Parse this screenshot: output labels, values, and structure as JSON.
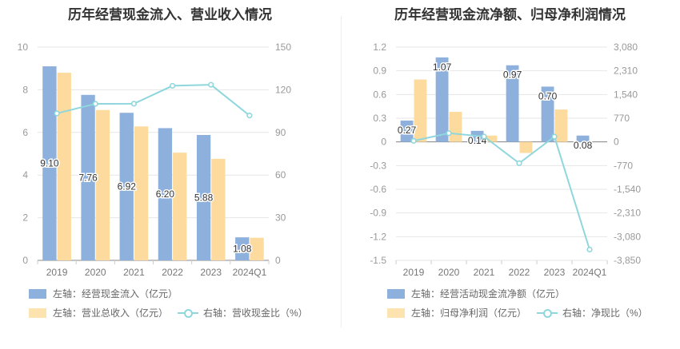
{
  "chart_data": [
    {
      "type": "bar",
      "title": "历年经营现金流入、营业收入情况",
      "categories": [
        "2019",
        "2020",
        "2021",
        "2022",
        "2023",
        "2024Q1"
      ],
      "series": [
        {
          "name": "左轴：经营现金流入（亿元）",
          "axis": "left",
          "type": "bar",
          "color": "#8eb0dd",
          "values": [
            9.1,
            7.76,
            6.92,
            6.2,
            5.88,
            1.08
          ],
          "labels": [
            "9.10",
            "7.76",
            "6.92",
            "6.20",
            "5.88",
            "1.08"
          ]
        },
        {
          "name": "左轴：营业总收入（亿元）",
          "axis": "left",
          "type": "bar",
          "color": "#fddb9e",
          "values": [
            8.8,
            7.05,
            6.28,
            5.05,
            4.76,
            1.06
          ]
        },
        {
          "name": "右轴：营收现金比（%）",
          "axis": "right",
          "type": "line",
          "color": "#8fd7dc",
          "values": [
            103.4,
            110.1,
            110.2,
            122.8,
            123.5,
            101.9
          ]
        }
      ],
      "left_axis": {
        "ylim": [
          0,
          10
        ],
        "ticks": [
          "0",
          "2",
          "4",
          "6",
          "8",
          "10"
        ]
      },
      "right_axis": {
        "ylim": [
          0,
          150
        ],
        "ticks": [
          "0",
          "30",
          "60",
          "90",
          "120",
          "150"
        ]
      }
    },
    {
      "type": "bar",
      "title": "历年经营现金流净额、归母净利润情况",
      "categories": [
        "2019",
        "2020",
        "2021",
        "2022",
        "2023",
        "2024Q1"
      ],
      "series": [
        {
          "name": "左轴：经营活动现金流净额（亿元）",
          "axis": "left",
          "type": "bar",
          "color": "#8eb0dd",
          "values": [
            0.27,
            1.07,
            0.14,
            0.97,
            0.7,
            0.08
          ],
          "labels": [
            "0.27",
            "1.07",
            "0.14",
            "0.97",
            "0.70",
            "0.08"
          ]
        },
        {
          "name": "左轴：归母净利润（亿元）",
          "axis": "left",
          "type": "bar",
          "color": "#fddb9e",
          "values": [
            0.79,
            0.38,
            0.08,
            -0.14,
            0.41,
            0.0
          ]
        },
        {
          "name": "右轴：净现比（%）",
          "axis": "right",
          "type": "line",
          "color": "#8fd7dc",
          "values": [
            34,
            282,
            175,
            -693,
            171,
            -3500
          ]
        }
      ],
      "left_axis": {
        "ylim": [
          -1.5,
          1.2
        ],
        "ticks": [
          "1.2",
          "0.9",
          "0.6",
          "0.3",
          "0",
          "-0.3",
          "-0.6",
          "-0.9",
          "-1.2",
          "-1.5"
        ]
      },
      "right_axis": {
        "ylim": [
          -3850,
          3080
        ],
        "ticks": [
          "3,080",
          "2,310",
          "1,540",
          "770",
          "0",
          "-770",
          "-1,540",
          "-2,310",
          "-3,080",
          "-3,850"
        ]
      }
    }
  ]
}
